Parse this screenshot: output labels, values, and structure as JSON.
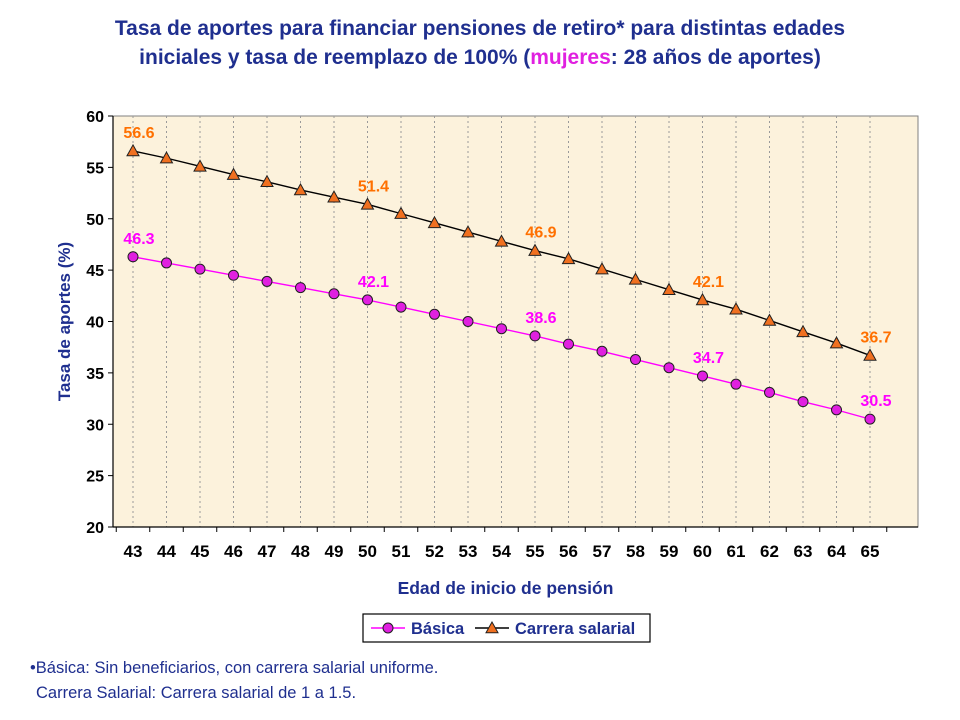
{
  "title": {
    "line1": "Tasa de aportes para financiar pensiones de retiro* para distintas edades",
    "line2_pre": "iniciales y tasa de reemplazo de 100% (",
    "line2_highlight": "mujeres",
    "line2_post": ": 28 años de aportes)"
  },
  "notes": [
    "•Básica: Sin beneficiarios, con carrera salarial uniforme.",
    "Carrera Salarial: Carrera salarial de 1 a 1.5."
  ],
  "colors": {
    "title": "#1f2f8f",
    "title_highlight": "#e020e0",
    "plot_bg": "#fcf2dc",
    "basica_line": "#ff00ff",
    "basica_marker": "#e020e0",
    "carrera_line": "#000000",
    "carrera_marker": "#f07020",
    "label_basica": "#ff00ff",
    "label_carrera": "#ff7000"
  },
  "chart_data": {
    "type": "line",
    "title": "Tasa de aportes para financiar pensiones de retiro* para distintas edades iniciales y tasa de reemplazo de 100% (mujeres: 28 años de aportes)",
    "xlabel": "Edad de inicio de pensión",
    "ylabel": "Tasa de aportes (%)",
    "ylim": [
      20,
      60
    ],
    "yticks": [
      20,
      25,
      30,
      35,
      40,
      45,
      50,
      55,
      60
    ],
    "categories": [
      "43",
      "44",
      "45",
      "46",
      "47",
      "48",
      "49",
      "50",
      "51",
      "52",
      "53",
      "54",
      "55",
      "56",
      "57",
      "58",
      "59",
      "60",
      "61",
      "62",
      "63",
      "64",
      "65"
    ],
    "grid": "vertical dashed",
    "legend": "bottom-center",
    "series": [
      {
        "name": "Básica",
        "marker": "circle",
        "values": [
          46.3,
          45.7,
          45.1,
          44.5,
          43.9,
          43.3,
          42.7,
          42.1,
          41.4,
          40.7,
          40.0,
          39.3,
          38.6,
          37.8,
          37.1,
          36.3,
          35.5,
          34.7,
          33.9,
          33.1,
          32.2,
          31.4,
          30.5
        ],
        "labels": [
          {
            "index": 0,
            "text": "46.3"
          },
          {
            "index": 7,
            "text": "42.1"
          },
          {
            "index": 12,
            "text": "38.6"
          },
          {
            "index": 17,
            "text": "34.7"
          },
          {
            "index": 22,
            "text": "30.5"
          }
        ]
      },
      {
        "name": "Carrera salarial",
        "marker": "triangle",
        "values": [
          56.6,
          55.9,
          55.1,
          54.3,
          53.6,
          52.8,
          52.1,
          51.4,
          50.5,
          49.6,
          48.7,
          47.8,
          46.9,
          46.1,
          45.1,
          44.1,
          43.1,
          42.1,
          41.2,
          40.1,
          39.0,
          37.9,
          36.7
        ],
        "labels": [
          {
            "index": 0,
            "text": "56.6"
          },
          {
            "index": 7,
            "text": "51.4"
          },
          {
            "index": 12,
            "text": "46.9"
          },
          {
            "index": 17,
            "text": "42.1"
          },
          {
            "index": 22,
            "text": "36.7"
          }
        ]
      }
    ]
  }
}
